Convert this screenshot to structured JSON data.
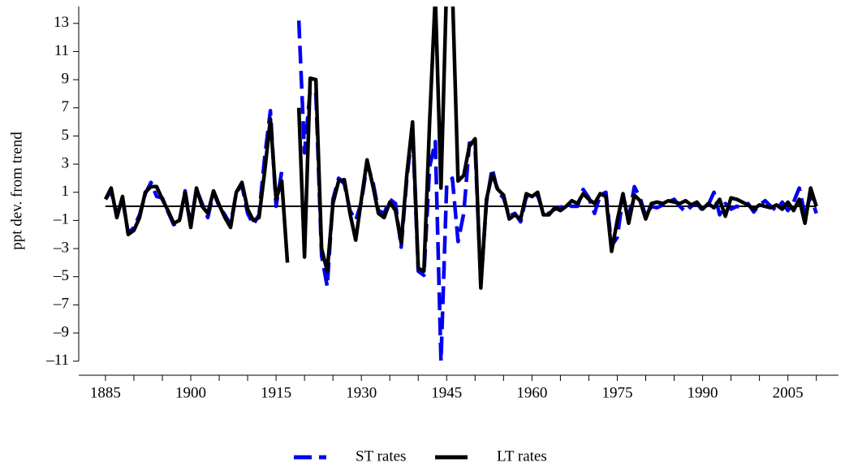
{
  "chart_data": {
    "type": "line",
    "ylabel": "ppt dev. from trend",
    "x": [
      1885,
      1886,
      1887,
      1888,
      1889,
      1890,
      1891,
      1892,
      1893,
      1894,
      1895,
      1896,
      1897,
      1898,
      1899,
      1900,
      1901,
      1902,
      1903,
      1904,
      1905,
      1906,
      1907,
      1908,
      1909,
      1910,
      1911,
      1912,
      1913,
      1914,
      1915,
      1916,
      1917,
      1918,
      1919,
      1920,
      1921,
      1922,
      1923,
      1924,
      1925,
      1926,
      1927,
      1928,
      1929,
      1930,
      1931,
      1932,
      1933,
      1934,
      1935,
      1936,
      1937,
      1938,
      1939,
      1940,
      1941,
      1942,
      1943,
      1944,
      1945,
      1946,
      1947,
      1948,
      1949,
      1950,
      1951,
      1952,
      1953,
      1954,
      1955,
      1956,
      1957,
      1958,
      1959,
      1960,
      1961,
      1962,
      1963,
      1964,
      1965,
      1966,
      1967,
      1968,
      1969,
      1970,
      1971,
      1972,
      1973,
      1974,
      1975,
      1976,
      1977,
      1978,
      1979,
      1980,
      1981,
      1982,
      1983,
      1984,
      1985,
      1986,
      1987,
      1988,
      1989,
      1990,
      1991,
      1992,
      1993,
      1994,
      1995,
      1996,
      1997,
      1998,
      1999,
      2000,
      2001,
      2002,
      2003,
      2004,
      2005,
      2006,
      2007,
      2008,
      2009,
      2010
    ],
    "series": [
      {
        "name": "ST rates",
        "color": "#0000ee",
        "dashed": true,
        "values": [
          0.5,
          1.1,
          -0.6,
          0.5,
          -1.9,
          -1.5,
          -0.6,
          0.9,
          1.7,
          0.7,
          0.6,
          -0.4,
          -1.3,
          -1.1,
          1.1,
          -1.3,
          1.2,
          0.2,
          -0.8,
          1.0,
          0.0,
          -0.6,
          -1.3,
          1.0,
          1.5,
          -0.5,
          -1.3,
          -0.6,
          3.5,
          6.8,
          0.0,
          2.5,
          null,
          null,
          13.2,
          3.8,
          8.3,
          8.0,
          -3.5,
          -5.7,
          0.5,
          2.0,
          1.6,
          -0.3,
          -1.0,
          0.3,
          3.0,
          1.8,
          -0.3,
          -0.5,
          0.5,
          0.2,
          -2.9,
          2.0,
          5.5,
          -4.6,
          -4.9,
          2.8,
          4.6,
          -11.0,
          1.5,
          2.0,
          -2.5,
          -0.5,
          4.5,
          4.2,
          -5.5,
          0.3,
          2.7,
          1.0,
          0.6,
          -0.7,
          -0.5,
          -1.1,
          0.7,
          0.6,
          0.8,
          -0.5,
          -0.5,
          -0.2,
          -0.1,
          0.2,
          0.0,
          0.0,
          1.2,
          0.6,
          -0.5,
          0.8,
          1.0,
          -2.8,
          -2.2,
          0.7,
          -0.8,
          1.4,
          0.6,
          -0.7,
          0.0,
          -0.1,
          0.1,
          0.3,
          0.5,
          0.0,
          -0.4,
          0.0,
          0.2,
          -0.3,
          0.1,
          1.0,
          -0.6,
          0.2,
          -0.2,
          0.0,
          -0.1,
          0.2,
          -0.4,
          0.1,
          0.4,
          0.0,
          -0.3,
          0.3,
          -0.3,
          0.3,
          1.3,
          -0.6,
          0.8,
          -0.5
        ]
      },
      {
        "name": "LT rates",
        "color": "#000000",
        "dashed": false,
        "values": [
          0.5,
          1.3,
          -0.8,
          0.7,
          -2.0,
          -1.7,
          -0.8,
          1.0,
          1.4,
          1.4,
          0.5,
          -0.3,
          -1.2,
          -1.0,
          1.0,
          -1.5,
          1.3,
          0.0,
          -0.5,
          1.1,
          0.1,
          -0.8,
          -1.5,
          1.0,
          1.7,
          -0.2,
          -1.0,
          -0.8,
          2.5,
          6.2,
          0.5,
          1.8,
          -4.0,
          null,
          7.0,
          -3.6,
          9.1,
          9.0,
          -3.0,
          -4.6,
          0.2,
          1.8,
          1.9,
          -0.5,
          -2.4,
          0.5,
          3.3,
          1.5,
          -0.5,
          -0.8,
          0.3,
          -0.3,
          -2.6,
          2.3,
          6.0,
          -4.4,
          -4.6,
          6.0,
          15.0,
          1.3,
          16.0,
          15.5,
          1.8,
          2.2,
          4.3,
          4.8,
          -5.8,
          0.5,
          2.3,
          1.2,
          0.8,
          -0.9,
          -0.6,
          -0.9,
          0.9,
          0.7,
          1.0,
          -0.6,
          -0.6,
          -0.1,
          -0.3,
          0.0,
          0.4,
          0.2,
          0.9,
          0.5,
          0.2,
          0.9,
          0.7,
          -3.2,
          -1.0,
          0.9,
          -1.2,
          0.8,
          0.4,
          -0.9,
          0.2,
          0.3,
          0.2,
          0.4,
          0.3,
          0.2,
          0.4,
          0.1,
          0.3,
          -0.2,
          0.2,
          -0.1,
          0.5,
          -0.7,
          0.6,
          0.5,
          0.3,
          0.1,
          -0.2,
          0.1,
          0.0,
          -0.1,
          0.1,
          -0.2,
          0.3,
          -0.3,
          0.5,
          -1.2,
          1.3,
          0.0
        ]
      }
    ],
    "xlim": [
      1880.3,
      2013.9
    ],
    "ylim": [
      -12,
      14.2
    ],
    "xticks": [
      1885,
      1900,
      1915,
      1930,
      1945,
      1960,
      1975,
      1990,
      2005
    ],
    "xminorticks": [
      1890,
      1895,
      1905,
      1910,
      1920,
      1925,
      1935,
      1940,
      1950,
      1955,
      1965,
      1970,
      1980,
      1985,
      1995,
      2000,
      2010
    ],
    "yticks": [
      {
        "value": -11,
        "label": "–11"
      },
      {
        "value": -9,
        "label": "–9"
      },
      {
        "value": -7,
        "label": "–7"
      },
      {
        "value": -5,
        "label": "–5"
      },
      {
        "value": -3,
        "label": "–3"
      },
      {
        "value": -1,
        "label": "–1"
      },
      1,
      3,
      5,
      7,
      9,
      11,
      13
    ],
    "hline": 0,
    "legend": "bottom"
  }
}
